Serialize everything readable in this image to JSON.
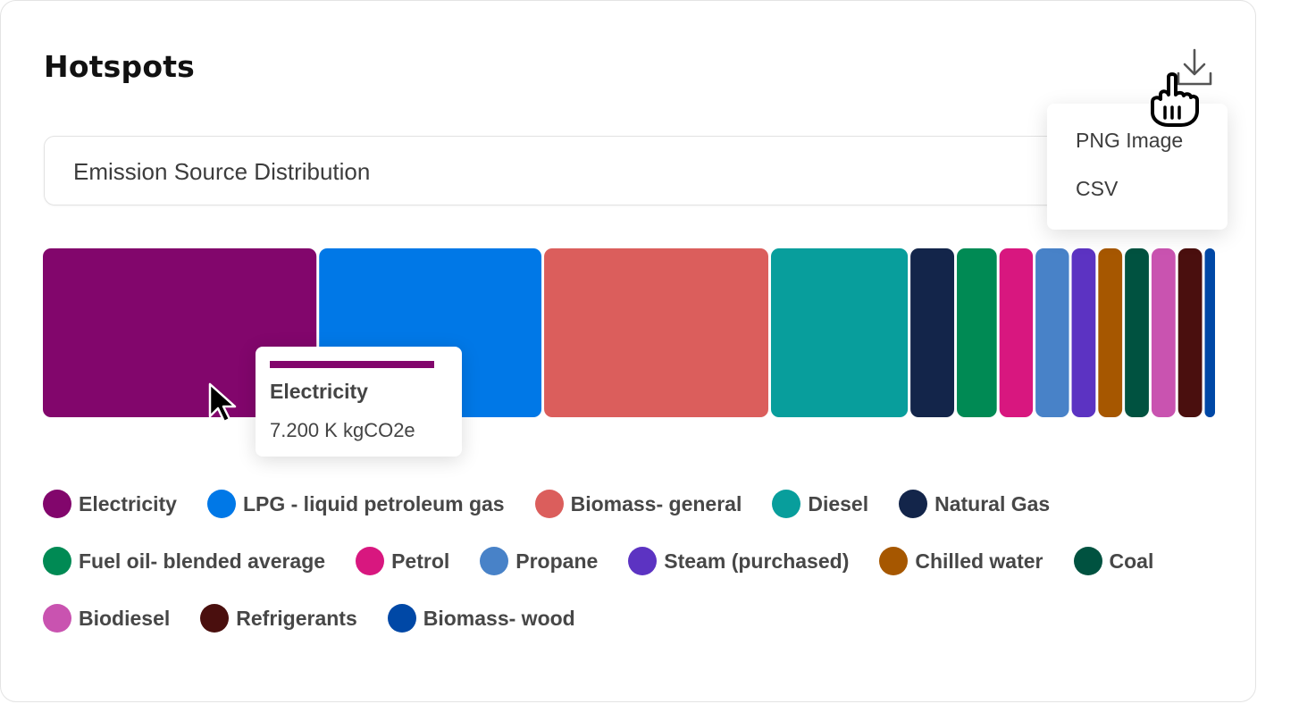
{
  "header": {
    "title": "Hotspots"
  },
  "selector": {
    "value": "Emission Source Distribution"
  },
  "download": {
    "icon": "download-icon",
    "menu": [
      "PNG Image",
      "CSV"
    ]
  },
  "tooltip": {
    "name": "Electricity",
    "value": "7.200 K kgCO2e",
    "color": "#82066c"
  },
  "chart_data": {
    "type": "treemap",
    "title": "",
    "series": [
      {
        "name": "Electricity",
        "value": 7.2,
        "color": "#82066c"
      },
      {
        "name": "LPG - liquid petroleum gas",
        "value": 5.85,
        "color": "#0078e7"
      },
      {
        "name": "Biomass- general",
        "value": 5.9,
        "color": "#db5e5c"
      },
      {
        "name": "Diesel",
        "value": 3.6,
        "color": "#089e9c"
      },
      {
        "name": "Natural Gas",
        "value": 1.15,
        "color": "#13254a"
      },
      {
        "name": "Fuel oil- blended average",
        "value": 1.05,
        "color": "#008a54"
      },
      {
        "name": "Petrol",
        "value": 0.88,
        "color": "#d8177f"
      },
      {
        "name": "Propane",
        "value": 0.88,
        "color": "#4882c8"
      },
      {
        "name": "Steam (purchased)",
        "value": 0.63,
        "color": "#5c33c2"
      },
      {
        "name": "Chilled water",
        "value": 0.63,
        "color": "#a65700"
      },
      {
        "name": "Coal",
        "value": 0.63,
        "color": "#005240"
      },
      {
        "name": "Biodiesel",
        "value": 0.63,
        "color": "#c953b0"
      },
      {
        "name": "Refrigerants",
        "value": 0.63,
        "color": "#4a0f0e"
      },
      {
        "name": "Biomass- wood",
        "value": 0.27,
        "color": "#0048a6"
      }
    ],
    "unit": "K kgCO2e"
  }
}
